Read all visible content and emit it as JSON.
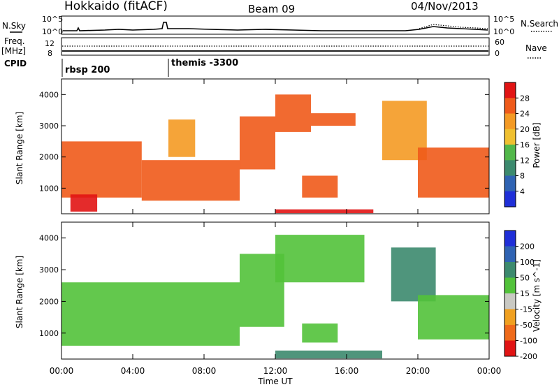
{
  "header": {
    "station": "Hokkaido (fitACF)",
    "beam": "Beam 09",
    "date": "04/Nov/2013"
  },
  "status_panel": {
    "nsky_label": "N.Sky",
    "nsearch_label": "N.Search",
    "nsky_ticks": [
      "10^5",
      "10^0"
    ],
    "freq_label": "Freq.",
    "freq_unit": "[MHz]",
    "freq_ticks": [
      "12",
      "8"
    ],
    "nave_label": "Nave",
    "nave_ticks": [
      "60",
      "0"
    ],
    "cpid_label": "CPID",
    "cpid_modes": [
      {
        "name": "rbsp 200",
        "start": 0.0
      },
      {
        "name": "themis -3300",
        "start": 6.0
      }
    ]
  },
  "chart_data": [
    {
      "type": "heatmap",
      "title": "Power",
      "ylabel": "Slant Range [km]",
      "xlabel": "Time UT",
      "x_range_hours": [
        0,
        24
      ],
      "ylim": [
        180,
        4500
      ],
      "y_ticks": [
        1000,
        2000,
        3000,
        4000
      ],
      "x_tick_labels": [
        "00:00",
        "04:00",
        "08:00",
        "12:00",
        "16:00",
        "20:00",
        "00:00"
      ],
      "colorbar": {
        "label": "Power [dB]",
        "ticks": [
          4,
          8,
          12,
          16,
          20,
          24,
          28
        ],
        "colors": [
          "#1f2fd8",
          "#2f63b3",
          "#3c8a6e",
          "#52b84a",
          "#f0c030",
          "#f49a24",
          "#ef5a1a",
          "#e11414"
        ]
      },
      "regions": [
        {
          "t0": 0.0,
          "t1": 4.5,
          "r0": 700,
          "r1": 2500,
          "value": 24
        },
        {
          "t0": 0.5,
          "t1": 2.0,
          "r0": 250,
          "r1": 800,
          "value": 28
        },
        {
          "t0": 4.5,
          "t1": 10.0,
          "r0": 600,
          "r1": 1900,
          "value": 26
        },
        {
          "t0": 6.0,
          "t1": 7.5,
          "r0": 2000,
          "r1": 3200,
          "value": 22
        },
        {
          "t0": 10.0,
          "t1": 12.0,
          "r0": 1600,
          "r1": 3300,
          "value": 24
        },
        {
          "t0": 12.0,
          "t1": 14.0,
          "r0": 2800,
          "r1": 4000,
          "value": 26
        },
        {
          "t0": 14.0,
          "t1": 16.5,
          "r0": 3000,
          "r1": 3400,
          "value": 24
        },
        {
          "t0": 13.5,
          "t1": 15.5,
          "r0": 700,
          "r1": 1400,
          "value": 26
        },
        {
          "t0": 18.0,
          "t1": 20.5,
          "r0": 1900,
          "r1": 3800,
          "value": 22
        },
        {
          "t0": 20.0,
          "t1": 24.0,
          "r0": 700,
          "r1": 2300,
          "value": 26
        },
        {
          "t0": 12.0,
          "t1": 17.5,
          "r0": 200,
          "r1": 320,
          "value": 28
        }
      ]
    },
    {
      "type": "heatmap",
      "title": "Velocity",
      "ylabel": "Slant Range [km]",
      "xlabel": "Time UT",
      "x_range_hours": [
        0,
        24
      ],
      "ylim": [
        180,
        4500
      ],
      "y_ticks": [
        1000,
        2000,
        3000,
        4000
      ],
      "x_tick_labels": [
        "00:00",
        "04:00",
        "08:00",
        "12:00",
        "16:00",
        "20:00",
        "00:00"
      ],
      "colorbar": {
        "label": "Velocity [m s^-1]",
        "ticks": [
          200,
          100,
          50,
          15,
          -15,
          -50,
          -100,
          -200
        ],
        "colors": [
          "#1f2fd8",
          "#2f63b3",
          "#3c8a6e",
          "#52c23a",
          "#c9c9c3",
          "#f0a020",
          "#ef6a1a",
          "#e11414"
        ]
      },
      "regions": [
        {
          "t0": 0.0,
          "t1": 10.0,
          "r0": 600,
          "r1": 2600,
          "value": 0
        },
        {
          "t0": 10.0,
          "t1": 12.5,
          "r0": 1200,
          "r1": 3500,
          "value": 0
        },
        {
          "t0": 12.0,
          "t1": 17.0,
          "r0": 2600,
          "r1": 4100,
          "value": 0
        },
        {
          "t0": 13.5,
          "t1": 15.5,
          "r0": 700,
          "r1": 1300,
          "value": 0
        },
        {
          "t0": 18.5,
          "t1": 21.0,
          "r0": 2000,
          "r1": 3700,
          "value": 25
        },
        {
          "t0": 20.0,
          "t1": 24.0,
          "r0": 800,
          "r1": 2200,
          "value": 0
        },
        {
          "t0": 12.0,
          "t1": 18.0,
          "r0": 200,
          "r1": 450,
          "value": 30
        }
      ]
    }
  ]
}
